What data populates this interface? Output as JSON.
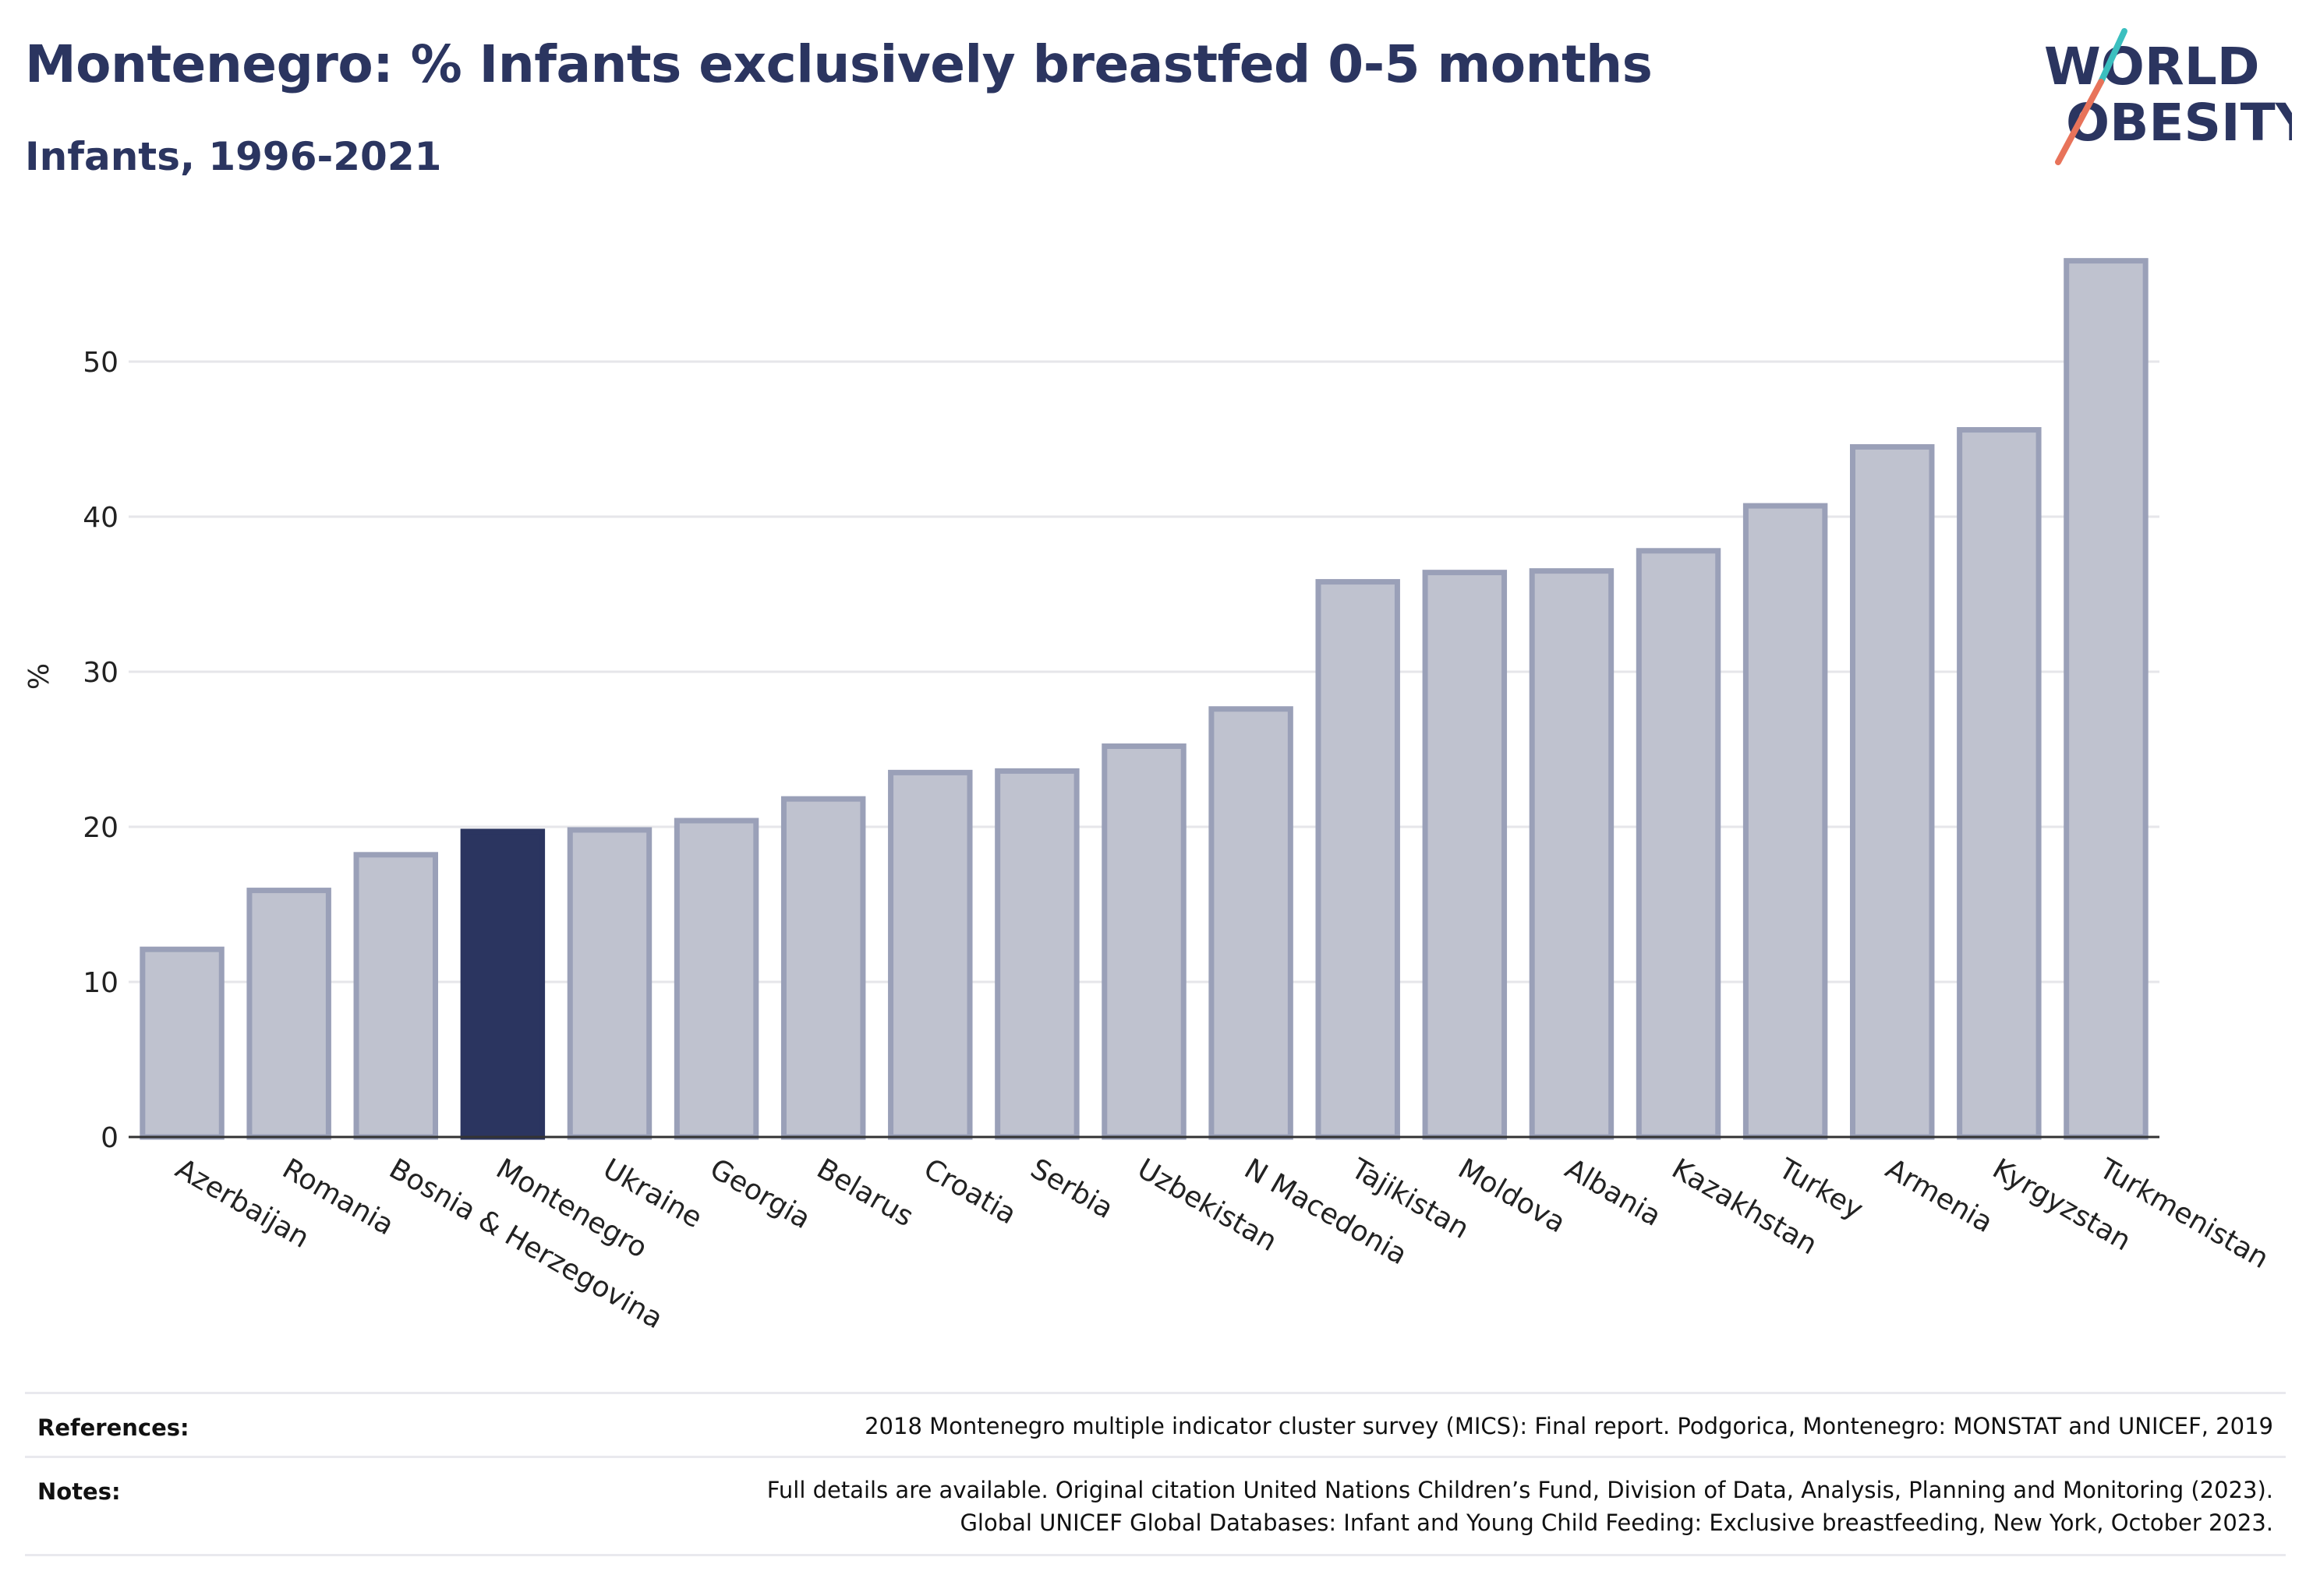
{
  "header": {
    "title": "Montenegro: % Infants exclusively breastfed 0-5 months",
    "subtitle": "Infants, 1996-2021"
  },
  "logo": {
    "line1": "WORLD",
    "line2": "OBESITY",
    "accent_teal": "#3bbfbf",
    "accent_coral": "#e8735a"
  },
  "colors": {
    "highlight": "#2b3560",
    "bar": "#bfc2cf",
    "bar_edge": "#9aa0b8",
    "grid": "#e6e6ea",
    "axis": "#333333"
  },
  "chart_data": {
    "type": "bar",
    "title": "Montenegro: % Infants exclusively breastfed 0-5 months",
    "subtitle": "Infants, 1996-2021",
    "xlabel": "",
    "ylabel": "%",
    "ylim": [
      0,
      58
    ],
    "yticks": [
      0,
      10,
      20,
      30,
      40,
      50
    ],
    "grid": true,
    "highlight": "Montenegro",
    "categories": [
      "Azerbaijan",
      "Romania",
      "Bosnia & Herzegovina",
      "Montenegro",
      "Ukraine",
      "Georgia",
      "Belarus",
      "Croatia",
      "Serbia",
      "Uzbekistan",
      "N Macedonia",
      "Tajikistan",
      "Moldova",
      "Albania",
      "Kazakhstan",
      "Turkey",
      "Armenia",
      "Kyrgyzstan",
      "Turkmenistan"
    ],
    "values": [
      12.1,
      15.9,
      18.2,
      19.7,
      19.8,
      20.4,
      21.8,
      23.5,
      23.6,
      25.2,
      27.6,
      35.8,
      36.4,
      36.5,
      37.8,
      40.7,
      44.5,
      45.6,
      56.5
    ]
  },
  "footer": {
    "references_label": "References:",
    "references_text": "2018 Montenegro multiple indicator cluster survey (MICS): Final report. Podgorica, Montenegro: MONSTAT and UNICEF, 2019",
    "notes_label": "Notes:",
    "notes_line1": "Full details are available. Original citation United Nations Children’s Fund, Division of Data, Analysis, Planning and Monitoring (2023).",
    "notes_line2": "Global UNICEF Global Databases: Infant and Young Child Feeding: Exclusive breastfeeding, New York, October 2023."
  }
}
